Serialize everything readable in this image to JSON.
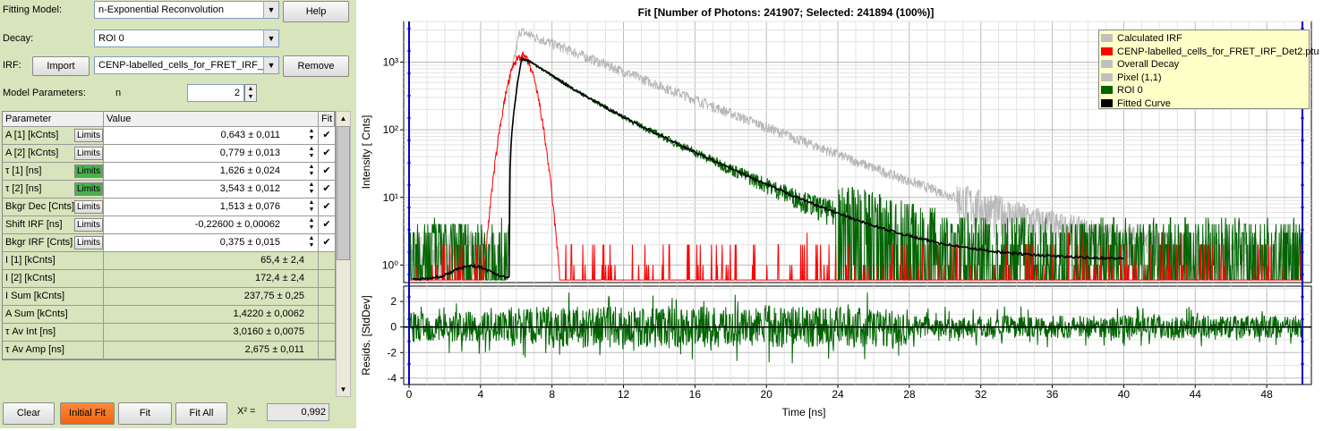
{
  "fitting_model": {
    "label": "Fitting Model:",
    "value": "n-Exponential Reconvolution"
  },
  "help_label": "Help",
  "decay": {
    "label": "Decay:",
    "value": "ROI 0"
  },
  "irf": {
    "label": "IRF:",
    "import_label": "Import",
    "value": "CENP-labelled_cells_for_FRET_IRF_Det2.ptu",
    "remove_label": "Remove"
  },
  "model_params": {
    "label": "Model Parameters:",
    "n_label": "n",
    "n_value": "2"
  },
  "table": {
    "headers": [
      "Parameter",
      "Value",
      "Fit"
    ],
    "limits_label": "Limits",
    "rows": [
      {
        "param": "A [1] [kCnts]",
        "value": "0,643 ± 0,011",
        "limits_on": false
      },
      {
        "param": "A [2] [kCnts]",
        "value": "0,779 ± 0,013",
        "limits_on": false
      },
      {
        "param": "τ [1] [ns]",
        "value": "1,626 ± 0,024",
        "limits_on": true
      },
      {
        "param": "τ [2] [ns]",
        "value": "3,543 ± 0,012",
        "limits_on": true
      },
      {
        "param": "Bkgr Dec [Cnts]",
        "value": "1,513 ± 0,076",
        "limits_on": false
      },
      {
        "param": "Shift IRF [ns]",
        "value": "-0,22600 ± 0,00062",
        "limits_on": false
      },
      {
        "param": "Bkgr IRF [Cnts]",
        "value": "0,375 ± 0,015",
        "limits_on": false
      }
    ],
    "derived": [
      {
        "param": "I [1] [kCnts]",
        "value": "65,4 ± 2,4"
      },
      {
        "param": "I [2] [kCnts]",
        "value": "172,4 ± 2,4"
      },
      {
        "param": "I Sum [kCnts]",
        "value": "237,75 ± 0,25"
      },
      {
        "param": "A Sum [kCnts]",
        "value": "1,4220 ± 0,0062"
      },
      {
        "param": "τ Av Int [ns]",
        "value": "3,0160 ± 0,0075"
      },
      {
        "param": "τ Av Amp [ns]",
        "value": "2,675 ± 0,011"
      }
    ]
  },
  "bottom": {
    "clear": "Clear",
    "initial_fit": "Initial Fit",
    "fit": "Fit",
    "fit_all": "Fit All",
    "chi_label": "X² =",
    "chi_value": "0,992"
  },
  "chart_data": {
    "type": "line",
    "title": "Fit [Number of Photons: 241907; Selected: 241894 (100%)]",
    "xlabel": "Time [ns]",
    "ylabel": "Intensity [ Cnts]",
    "resid_ylabel": "Resids. [StdDev]",
    "xlim": [
      -0.3,
      50.5
    ],
    "xticks": [
      0,
      4,
      8,
      12,
      16,
      20,
      24,
      28,
      32,
      36,
      40,
      44,
      48
    ],
    "ylim_log": [
      0.55,
      4000
    ],
    "yticks": [
      "10⁰",
      "10¹",
      "10²",
      "10³"
    ],
    "resid_ylim": [
      -4.5,
      3.2
    ],
    "resid_yticks": [
      2,
      0,
      -2,
      -4
    ],
    "grid": true,
    "legend_position": "top-right",
    "series": [
      {
        "name": "Calculated IRF",
        "color": "#c0c0c0",
        "peak_x": 6.3,
        "peak_y": 3000
      },
      {
        "name": "CENP-labelled_cells_for_FRET_IRF_Det2.ptu",
        "color": "#ff0000",
        "peak_x": 6.3,
        "peak_y": 1250
      },
      {
        "name": "Overall Decay",
        "color": "#c0c0c0",
        "peak_x": 6.5,
        "peak_y": 2800
      },
      {
        "name": "Pixel (1,1)",
        "color": "#c0c0c0"
      },
      {
        "name": "ROI 0",
        "color": "#006400",
        "peak_x": 6.5,
        "peak_y": 1150
      },
      {
        "name": "Fitted Curve",
        "color": "#000000",
        "peak_x": 6.5,
        "peak_y": 1150
      }
    ],
    "cursor_lines_x": [
      0,
      50
    ]
  }
}
